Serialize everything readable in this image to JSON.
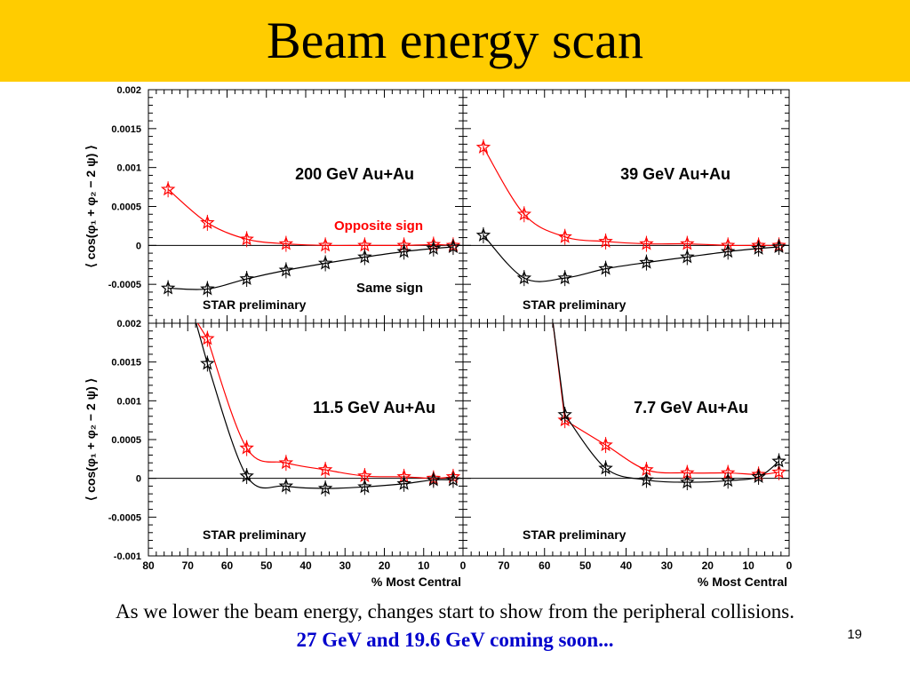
{
  "slide": {
    "title": "Beam energy scan",
    "caption_line1": "As we lower the beam energy, changes start to show from the peripheral collisions.",
    "caption_line2": "27 GeV and 19.6 GeV coming soon...",
    "caption_line2_color": "#0000cc",
    "page_number": "19",
    "band_color": "#ffcc00"
  },
  "chart_data": [
    {
      "type": "scatter",
      "title": "200 GeV Au+Au",
      "ylabel": "⟨ cos(φ₁ + φ₂ − 2 ψ) ⟩",
      "xlabel": "",
      "xlim": [
        80,
        0
      ],
      "ylim": [
        -0.001,
        0.002
      ],
      "yticks": [
        "0.002",
        "0.0015",
        "0.001",
        "0.0005",
        "0",
        "-0.0005",
        ""
      ],
      "xticks": [],
      "preliminary": "STAR preliminary",
      "series": [
        {
          "name": "Opposite sign",
          "color": "#ff0000",
          "x": [
            75,
            65,
            55,
            45,
            35,
            25,
            15,
            7.5,
            2.5
          ],
          "y": [
            0.00072,
            0.00029,
            8e-05,
            2e-05,
            0.0,
            0.0,
            0.0,
            1e-05,
            0.0
          ]
        },
        {
          "name": "Same sign",
          "color": "#000000",
          "x": [
            75,
            65,
            55,
            45,
            35,
            25,
            15,
            7.5,
            2.5
          ],
          "y": [
            -0.00055,
            -0.00056,
            -0.00043,
            -0.00032,
            -0.00023,
            -0.00015,
            -8e-05,
            -4e-05,
            -2e-05
          ]
        }
      ]
    },
    {
      "type": "scatter",
      "title": "39 GeV Au+Au",
      "ylabel": "",
      "xlabel": "",
      "xlim": [
        80,
        0
      ],
      "ylim": [
        -0.001,
        0.002
      ],
      "yticks": [],
      "xticks": [],
      "preliminary": "STAR preliminary",
      "series": [
        {
          "name": "",
          "color": "#ff0000",
          "x": [
            75,
            65,
            55,
            45,
            35,
            25,
            15,
            7.5,
            2.5
          ],
          "y": [
            0.00126,
            0.0004,
            0.00011,
            5e-05,
            2e-05,
            2e-05,
            0.0,
            0.0,
            0.0
          ]
        },
        {
          "name": "",
          "color": "#000000",
          "x": [
            75,
            65,
            55,
            45,
            35,
            25,
            15,
            7.5,
            2.5
          ],
          "y": [
            0.00013,
            -0.00042,
            -0.00042,
            -0.0003,
            -0.00022,
            -0.00015,
            -8e-05,
            -4e-05,
            -2e-05
          ]
        }
      ]
    },
    {
      "type": "scatter",
      "title": "11.5 GeV Au+Au",
      "ylabel": "⟨ cos(φ₁ + φ₂ − 2 ψ) ⟩",
      "xlabel": "% Most Central",
      "xlim": [
        80,
        0
      ],
      "ylim": [
        -0.001,
        0.002
      ],
      "yticks": [
        "0.002",
        "0.0015",
        "0.001",
        "0.0005",
        "0",
        "-0.0005",
        "-0.001"
      ],
      "xticks": [
        "80",
        "70",
        "60",
        "50",
        "40",
        "30",
        "20",
        "10",
        "0"
      ],
      "preliminary": "STAR preliminary",
      "series": [
        {
          "name": "",
          "color": "#ff0000",
          "x": [
            65,
            55,
            45,
            35,
            25,
            15,
            7.5,
            2.5
          ],
          "y": [
            0.0018,
            0.00039,
            0.0002,
            0.00011,
            3e-05,
            2e-05,
            0.0,
            2e-05
          ]
        },
        {
          "name": "",
          "color": "#000000",
          "x": [
            65,
            55,
            45,
            35,
            25,
            15,
            7.5,
            2.5
          ],
          "y": [
            0.00148,
            3e-05,
            -0.0001,
            -0.00013,
            -0.00011,
            -7e-05,
            -2e-05,
            -2e-05
          ]
        }
      ]
    },
    {
      "type": "scatter",
      "title": "7.7 GeV Au+Au",
      "ylabel": "",
      "xlabel": "% Most Central",
      "xlim": [
        80,
        0
      ],
      "ylim": [
        -0.001,
        0.002
      ],
      "yticks": [],
      "xticks": [
        "",
        "70",
        "60",
        "50",
        "40",
        "30",
        "20",
        "10",
        "0"
      ],
      "preliminary": "STAR preliminary",
      "series": [
        {
          "name": "",
          "color": "#ff0000",
          "x": [
            55,
            45,
            35,
            25,
            15,
            7.5,
            2.5
          ],
          "y": [
            0.00075,
            0.00043,
            0.00011,
            7e-05,
            7e-05,
            5e-05,
            8e-05
          ]
        },
        {
          "name": "",
          "color": "#000000",
          "x": [
            55,
            45,
            35,
            25,
            15,
            7.5,
            2.5
          ],
          "y": [
            0.00082,
            0.00013,
            -2e-05,
            -5e-05,
            -3e-05,
            2e-05,
            0.00022
          ]
        }
      ]
    }
  ]
}
